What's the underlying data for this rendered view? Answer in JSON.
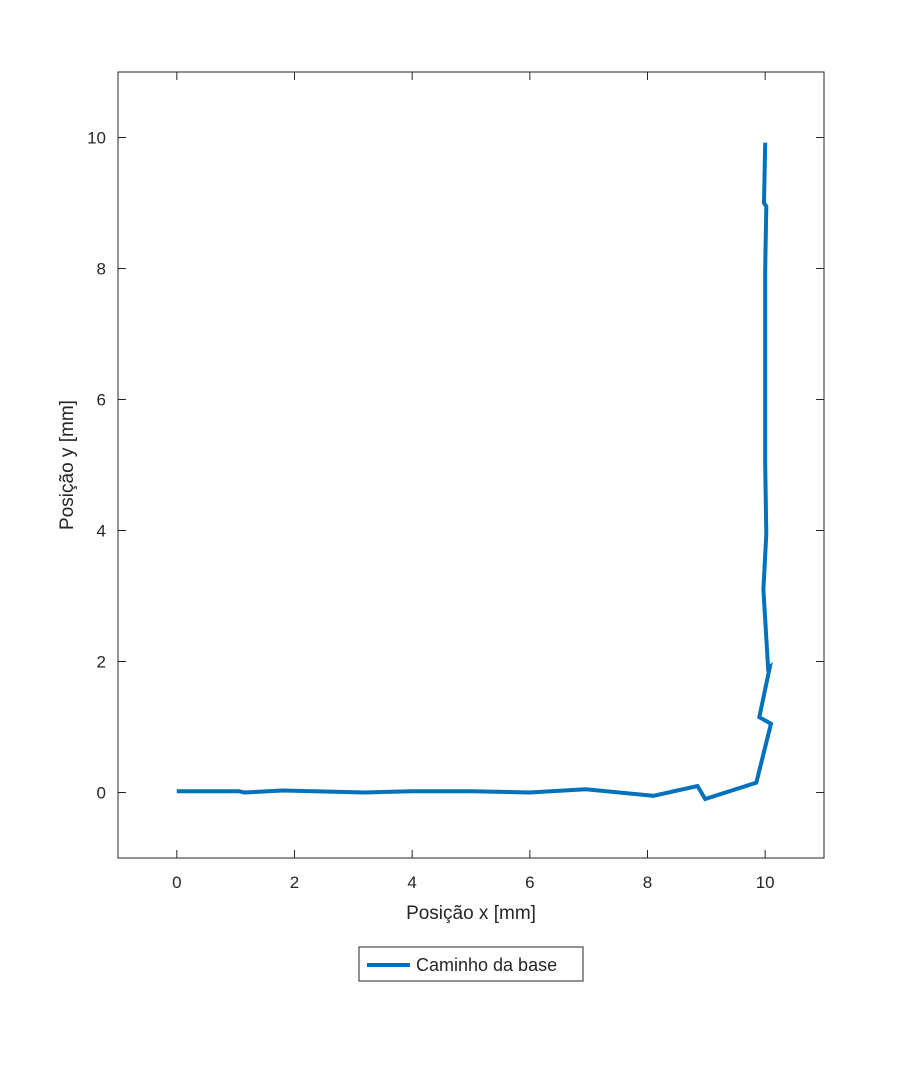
{
  "chart_data": {
    "type": "line",
    "title": "",
    "xlabel": "Posição x [mm]",
    "ylabel": "Posição y [mm]",
    "xlim": [
      -1,
      11
    ],
    "ylim": [
      -1,
      11
    ],
    "xticks": [
      0,
      2,
      4,
      6,
      8,
      10
    ],
    "yticks": [
      0,
      2,
      4,
      6,
      8,
      10
    ],
    "xtick_labels": [
      "0",
      "2",
      "4",
      "6",
      "8",
      "10"
    ],
    "ytick_labels": [
      "0",
      "2",
      "4",
      "6",
      "8",
      "10"
    ],
    "grid": false,
    "legend_position": "bottom-center",
    "series": [
      {
        "name": "Caminho da base",
        "color": "#0072BD",
        "x": [
          0,
          1.05,
          1.15,
          1.8,
          3.2,
          4.0,
          5.0,
          6.0,
          6.95,
          8.1,
          8.85,
          8.98,
          9.85,
          10.1,
          9.9,
          10.08,
          10.05,
          9.97,
          10.02,
          10.0,
          10.0,
          10.0,
          10.0,
          10.02,
          9.98,
          10.0
        ],
        "y": [
          0.02,
          0.02,
          0.0,
          0.03,
          0.0,
          0.02,
          0.02,
          0.0,
          0.05,
          -0.05,
          0.1,
          -0.1,
          0.15,
          1.05,
          1.15,
          1.92,
          1.9,
          3.1,
          3.95,
          5.0,
          6.0,
          7.0,
          8.0,
          8.95,
          9.0,
          9.92
        ]
      }
    ]
  }
}
